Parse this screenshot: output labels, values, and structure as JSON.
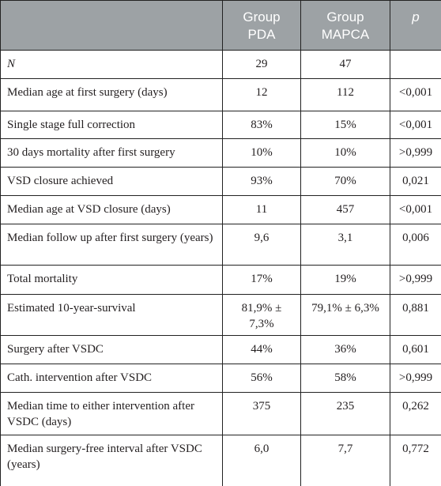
{
  "table": {
    "header": [
      "",
      "Group\nPDA",
      "Group\nMAPCA",
      "p"
    ],
    "rows": [
      [
        "N",
        "29",
        "47",
        ""
      ],
      [
        "Median age at first surgery (days)",
        "12",
        "112",
        "<0,001"
      ],
      [
        "Single stage full correction",
        "83%",
        "15%",
        "<0,001"
      ],
      [
        "30 days mortality after first surgery",
        "10%",
        "10%",
        ">0,999"
      ],
      [
        "VSD closure achieved",
        "93%",
        "70%",
        "0,021"
      ],
      [
        "Median age at VSD closure (days)",
        "11",
        "457",
        "<0,001"
      ],
      [
        "Median follow up after first surgery (years)",
        "9,6",
        "3,1",
        "0,006"
      ],
      [
        "Total mortality",
        "17%",
        "19%",
        ">0,999"
      ],
      [
        "Estimated 10-year-survival",
        "81,9% ± 7,3%",
        "79,1% ± 6,3%",
        "0,881"
      ],
      [
        "Surgery after VSDC",
        "44%",
        "36%",
        "0,601"
      ],
      [
        "Cath. intervention after VSDC",
        "56%",
        "58%",
        ">0,999"
      ],
      [
        "Median time to either intervention after VSDC (days)",
        "375",
        "235",
        "0,262"
      ],
      [
        "Median surgery-free interval after VSDC (years)",
        "6,0",
        "7,7",
        "0,772"
      ]
    ]
  }
}
